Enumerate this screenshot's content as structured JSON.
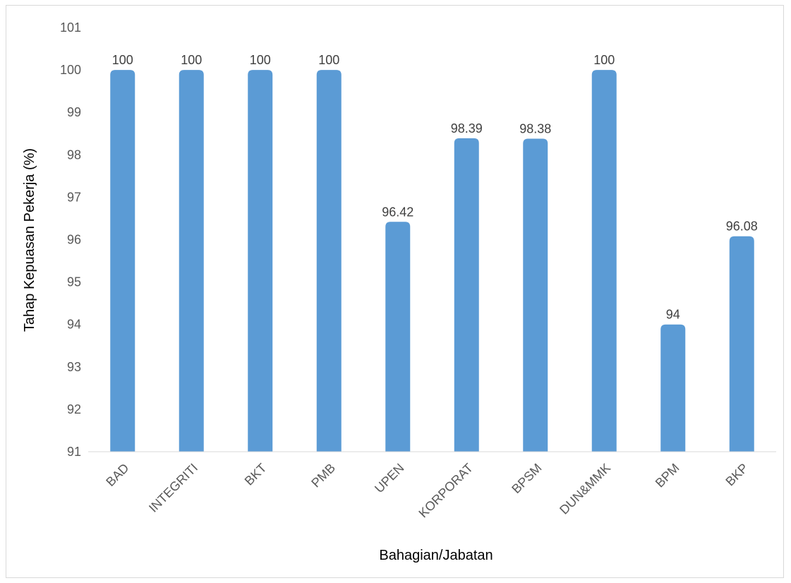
{
  "chart_data": {
    "type": "bar",
    "categories": [
      "BAD",
      "INTEGRITI",
      "BKT",
      "PMB",
      "UPEN",
      "KORPORAT",
      "BPSM",
      "DUN&MMK",
      "BPM",
      "BKP"
    ],
    "values": [
      100,
      100,
      100,
      100,
      96.42,
      98.39,
      98.38,
      100,
      94,
      96.08
    ],
    "data_labels": [
      "100",
      "100",
      "100",
      "100",
      "96.42",
      "98.39",
      "98.38",
      "100",
      "94",
      "96.08"
    ],
    "xlabel": "Bahagian/Jabatan",
    "ylabel": "Tahap Kepuasan Pekerja (%)",
    "ylim": [
      91,
      101
    ],
    "yticks": [
      "91",
      "92",
      "93",
      "94",
      "95",
      "96",
      "97",
      "98",
      "99",
      "100",
      "101"
    ],
    "grid": false,
    "legend": "none",
    "colors": {
      "bar": "#5B9BD5",
      "axis": "#d9d9d9"
    }
  }
}
